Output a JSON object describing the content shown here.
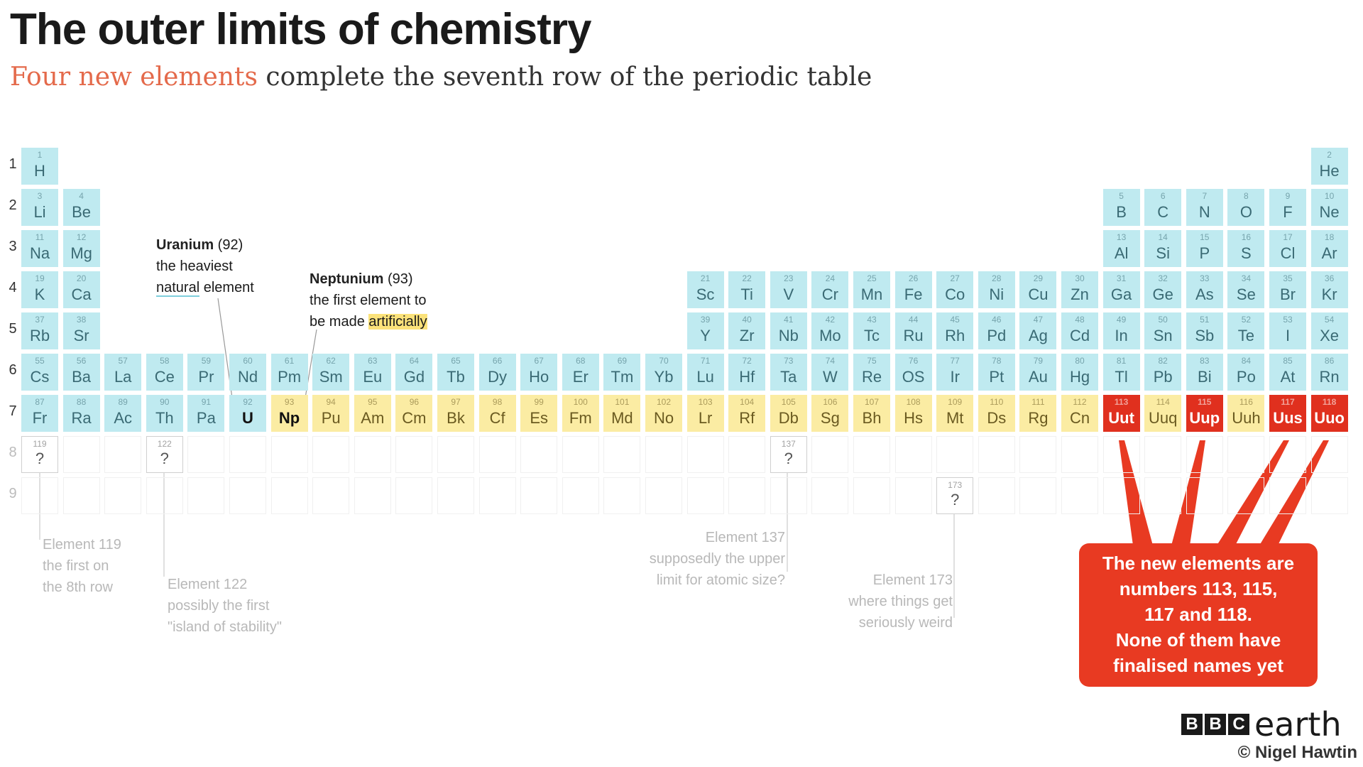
{
  "title": "The outer limits of chemistry",
  "subtitle": {
    "highlight": "Four new elements",
    "rest": " complete the seventh row of the periodic table"
  },
  "row_labels": [
    "1",
    "2",
    "3",
    "4",
    "5",
    "6",
    "7",
    "8",
    "9"
  ],
  "elements": [
    {
      "n": "1",
      "s": "H",
      "p": 1,
      "g": 1,
      "c": "blue"
    },
    {
      "n": "2",
      "s": "He",
      "p": 1,
      "g": 18,
      "c": "blue"
    },
    {
      "n": "3",
      "s": "Li",
      "p": 2,
      "g": 1,
      "c": "blue"
    },
    {
      "n": "4",
      "s": "Be",
      "p": 2,
      "g": 2,
      "c": "blue"
    },
    {
      "n": "5",
      "s": "B",
      "p": 2,
      "g": 13,
      "c": "blue"
    },
    {
      "n": "6",
      "s": "C",
      "p": 2,
      "g": 14,
      "c": "blue"
    },
    {
      "n": "7",
      "s": "N",
      "p": 2,
      "g": 15,
      "c": "blue"
    },
    {
      "n": "8",
      "s": "O",
      "p": 2,
      "g": 16,
      "c": "blue"
    },
    {
      "n": "9",
      "s": "F",
      "p": 2,
      "g": 17,
      "c": "blue"
    },
    {
      "n": "10",
      "s": "Ne",
      "p": 2,
      "g": 18,
      "c": "blue"
    },
    {
      "n": "11",
      "s": "Na",
      "p": 3,
      "g": 1,
      "c": "blue"
    },
    {
      "n": "12",
      "s": "Mg",
      "p": 3,
      "g": 2,
      "c": "blue"
    },
    {
      "n": "13",
      "s": "Al",
      "p": 3,
      "g": 13,
      "c": "blue"
    },
    {
      "n": "14",
      "s": "Si",
      "p": 3,
      "g": 14,
      "c": "blue"
    },
    {
      "n": "15",
      "s": "P",
      "p": 3,
      "g": 15,
      "c": "blue"
    },
    {
      "n": "16",
      "s": "S",
      "p": 3,
      "g": 16,
      "c": "blue"
    },
    {
      "n": "17",
      "s": "Cl",
      "p": 3,
      "g": 17,
      "c": "blue"
    },
    {
      "n": "18",
      "s": "Ar",
      "p": 3,
      "g": 18,
      "c": "blue"
    },
    {
      "n": "19",
      "s": "K",
      "p": 4,
      "g": 1,
      "c": "blue"
    },
    {
      "n": "20",
      "s": "Ca",
      "p": 4,
      "g": 2,
      "c": "blue"
    },
    {
      "n": "21",
      "s": "Sc",
      "p": 4,
      "g": 3,
      "c": "blue"
    },
    {
      "n": "22",
      "s": "Ti",
      "p": 4,
      "g": 4,
      "c": "blue"
    },
    {
      "n": "23",
      "s": "V",
      "p": 4,
      "g": 5,
      "c": "blue"
    },
    {
      "n": "24",
      "s": "Cr",
      "p": 4,
      "g": 6,
      "c": "blue"
    },
    {
      "n": "25",
      "s": "Mn",
      "p": 4,
      "g": 7,
      "c": "blue"
    },
    {
      "n": "26",
      "s": "Fe",
      "p": 4,
      "g": 8,
      "c": "blue"
    },
    {
      "n": "27",
      "s": "Co",
      "p": 4,
      "g": 9,
      "c": "blue"
    },
    {
      "n": "28",
      "s": "Ni",
      "p": 4,
      "g": 10,
      "c": "blue"
    },
    {
      "n": "29",
      "s": "Cu",
      "p": 4,
      "g": 11,
      "c": "blue"
    },
    {
      "n": "30",
      "s": "Zn",
      "p": 4,
      "g": 12,
      "c": "blue"
    },
    {
      "n": "31",
      "s": "Ga",
      "p": 4,
      "g": 13,
      "c": "blue"
    },
    {
      "n": "32",
      "s": "Ge",
      "p": 4,
      "g": 14,
      "c": "blue"
    },
    {
      "n": "33",
      "s": "As",
      "p": 4,
      "g": 15,
      "c": "blue"
    },
    {
      "n": "34",
      "s": "Se",
      "p": 4,
      "g": 16,
      "c": "blue"
    },
    {
      "n": "35",
      "s": "Br",
      "p": 4,
      "g": 17,
      "c": "blue"
    },
    {
      "n": "36",
      "s": "Kr",
      "p": 4,
      "g": 18,
      "c": "blue"
    },
    {
      "n": "37",
      "s": "Rb",
      "p": 5,
      "g": 1,
      "c": "blue"
    },
    {
      "n": "38",
      "s": "Sr",
      "p": 5,
      "g": 2,
      "c": "blue"
    },
    {
      "n": "39",
      "s": "Y",
      "p": 5,
      "g": 3,
      "c": "blue"
    },
    {
      "n": "40",
      "s": "Zr",
      "p": 5,
      "g": 4,
      "c": "blue"
    },
    {
      "n": "41",
      "s": "Nb",
      "p": 5,
      "g": 5,
      "c": "blue"
    },
    {
      "n": "42",
      "s": "Mo",
      "p": 5,
      "g": 6,
      "c": "blue"
    },
    {
      "n": "43",
      "s": "Tc",
      "p": 5,
      "g": 7,
      "c": "blue"
    },
    {
      "n": "44",
      "s": "Ru",
      "p": 5,
      "g": 8,
      "c": "blue"
    },
    {
      "n": "45",
      "s": "Rh",
      "p": 5,
      "g": 9,
      "c": "blue"
    },
    {
      "n": "46",
      "s": "Pd",
      "p": 5,
      "g": 10,
      "c": "blue"
    },
    {
      "n": "47",
      "s": "Ag",
      "p": 5,
      "g": 11,
      "c": "blue"
    },
    {
      "n": "48",
      "s": "Cd",
      "p": 5,
      "g": 12,
      "c": "blue"
    },
    {
      "n": "49",
      "s": "In",
      "p": 5,
      "g": 13,
      "c": "blue"
    },
    {
      "n": "50",
      "s": "Sn",
      "p": 5,
      "g": 14,
      "c": "blue"
    },
    {
      "n": "51",
      "s": "Sb",
      "p": 5,
      "g": 15,
      "c": "blue"
    },
    {
      "n": "52",
      "s": "Te",
      "p": 5,
      "g": 16,
      "c": "blue"
    },
    {
      "n": "53",
      "s": "I",
      "p": 5,
      "g": 17,
      "c": "blue"
    },
    {
      "n": "54",
      "s": "Xe",
      "p": 5,
      "g": 18,
      "c": "blue"
    },
    {
      "n": "55",
      "s": "Cs",
      "p": 6,
      "col": 1,
      "c": "blue"
    },
    {
      "n": "56",
      "s": "Ba",
      "p": 6,
      "col": 2,
      "c": "blue"
    },
    {
      "n": "57",
      "s": "La",
      "p": 6,
      "col": 3,
      "c": "blue"
    },
    {
      "n": "58",
      "s": "Ce",
      "p": 6,
      "col": 4,
      "c": "blue"
    },
    {
      "n": "59",
      "s": "Pr",
      "p": 6,
      "col": 5,
      "c": "blue"
    },
    {
      "n": "60",
      "s": "Nd",
      "p": 6,
      "col": 6,
      "c": "blue"
    },
    {
      "n": "61",
      "s": "Pm",
      "p": 6,
      "col": 7,
      "c": "blue"
    },
    {
      "n": "62",
      "s": "Sm",
      "p": 6,
      "col": 8,
      "c": "blue"
    },
    {
      "n": "63",
      "s": "Eu",
      "p": 6,
      "col": 9,
      "c": "blue"
    },
    {
      "n": "64",
      "s": "Gd",
      "p": 6,
      "col": 10,
      "c": "blue"
    },
    {
      "n": "65",
      "s": "Tb",
      "p": 6,
      "col": 11,
      "c": "blue"
    },
    {
      "n": "66",
      "s": "Dy",
      "p": 6,
      "col": 12,
      "c": "blue"
    },
    {
      "n": "67",
      "s": "Ho",
      "p": 6,
      "col": 13,
      "c": "blue"
    },
    {
      "n": "68",
      "s": "Er",
      "p": 6,
      "col": 14,
      "c": "blue"
    },
    {
      "n": "69",
      "s": "Tm",
      "p": 6,
      "col": 15,
      "c": "blue"
    },
    {
      "n": "70",
      "s": "Yb",
      "p": 6,
      "col": 16,
      "c": "blue"
    },
    {
      "n": "71",
      "s": "Lu",
      "p": 6,
      "col": 17,
      "c": "blue"
    },
    {
      "n": "72",
      "s": "Hf",
      "p": 6,
      "col": 18,
      "c": "blue"
    },
    {
      "n": "73",
      "s": "Ta",
      "p": 6,
      "col": 19,
      "c": "blue"
    },
    {
      "n": "74",
      "s": "W",
      "p": 6,
      "col": 20,
      "c": "blue"
    },
    {
      "n": "75",
      "s": "Re",
      "p": 6,
      "col": 21,
      "c": "blue"
    },
    {
      "n": "76",
      "s": "OS",
      "p": 6,
      "col": 22,
      "c": "blue"
    },
    {
      "n": "77",
      "s": "Ir",
      "p": 6,
      "col": 23,
      "c": "blue"
    },
    {
      "n": "78",
      "s": "Pt",
      "p": 6,
      "col": 24,
      "c": "blue"
    },
    {
      "n": "79",
      "s": "Au",
      "p": 6,
      "col": 25,
      "c": "blue"
    },
    {
      "n": "80",
      "s": "Hg",
      "p": 6,
      "col": 26,
      "c": "blue"
    },
    {
      "n": "81",
      "s": "Tl",
      "p": 6,
      "col": 27,
      "c": "blue"
    },
    {
      "n": "82",
      "s": "Pb",
      "p": 6,
      "col": 28,
      "c": "blue"
    },
    {
      "n": "83",
      "s": "Bi",
      "p": 6,
      "col": 29,
      "c": "blue"
    },
    {
      "n": "84",
      "s": "Po",
      "p": 6,
      "col": 30,
      "c": "blue"
    },
    {
      "n": "85",
      "s": "At",
      "p": 6,
      "col": 31,
      "c": "blue"
    },
    {
      "n": "86",
      "s": "Rn",
      "p": 6,
      "col": 32,
      "c": "blue"
    },
    {
      "n": "87",
      "s": "Fr",
      "p": 7,
      "col": 1,
      "c": "blue"
    },
    {
      "n": "88",
      "s": "Ra",
      "p": 7,
      "col": 2,
      "c": "blue"
    },
    {
      "n": "89",
      "s": "Ac",
      "p": 7,
      "col": 3,
      "c": "blue"
    },
    {
      "n": "90",
      "s": "Th",
      "p": 7,
      "col": 4,
      "c": "blue"
    },
    {
      "n": "91",
      "s": "Pa",
      "p": 7,
      "col": 5,
      "c": "blue"
    },
    {
      "n": "92",
      "s": "U",
      "p": 7,
      "col": 6,
      "c": "blue",
      "strong": true
    },
    {
      "n": "93",
      "s": "Np",
      "p": 7,
      "col": 7,
      "c": "yellow",
      "strong": true
    },
    {
      "n": "94",
      "s": "Pu",
      "p": 7,
      "col": 8,
      "c": "yellow"
    },
    {
      "n": "95",
      "s": "Am",
      "p": 7,
      "col": 9,
      "c": "yellow"
    },
    {
      "n": "96",
      "s": "Cm",
      "p": 7,
      "col": 10,
      "c": "yellow"
    },
    {
      "n": "97",
      "s": "Bk",
      "p": 7,
      "col": 11,
      "c": "yellow"
    },
    {
      "n": "98",
      "s": "Cf",
      "p": 7,
      "col": 12,
      "c": "yellow"
    },
    {
      "n": "99",
      "s": "Es",
      "p": 7,
      "col": 13,
      "c": "yellow"
    },
    {
      "n": "100",
      "s": "Fm",
      "p": 7,
      "col": 14,
      "c": "yellow"
    },
    {
      "n": "101",
      "s": "Md",
      "p": 7,
      "col": 15,
      "c": "yellow"
    },
    {
      "n": "102",
      "s": "No",
      "p": 7,
      "col": 16,
      "c": "yellow"
    },
    {
      "n": "103",
      "s": "Lr",
      "p": 7,
      "col": 17,
      "c": "yellow"
    },
    {
      "n": "104",
      "s": "Rf",
      "p": 7,
      "col": 18,
      "c": "yellow"
    },
    {
      "n": "105",
      "s": "Db",
      "p": 7,
      "col": 19,
      "c": "yellow"
    },
    {
      "n": "106",
      "s": "Sg",
      "p": 7,
      "col": 20,
      "c": "yellow"
    },
    {
      "n": "107",
      "s": "Bh",
      "p": 7,
      "col": 21,
      "c": "yellow"
    },
    {
      "n": "108",
      "s": "Hs",
      "p": 7,
      "col": 22,
      "c": "yellow"
    },
    {
      "n": "109",
      "s": "Mt",
      "p": 7,
      "col": 23,
      "c": "yellow"
    },
    {
      "n": "110",
      "s": "Ds",
      "p": 7,
      "col": 24,
      "c": "yellow"
    },
    {
      "n": "111",
      "s": "Rg",
      "p": 7,
      "col": 25,
      "c": "yellow"
    },
    {
      "n": "112",
      "s": "Cn",
      "p": 7,
      "col": 26,
      "c": "yellow"
    },
    {
      "n": "113",
      "s": "Uut",
      "p": 7,
      "col": 27,
      "c": "red"
    },
    {
      "n": "114",
      "s": "Uuq",
      "p": 7,
      "col": 28,
      "c": "yellow"
    },
    {
      "n": "115",
      "s": "Uup",
      "p": 7,
      "col": 29,
      "c": "red"
    },
    {
      "n": "116",
      "s": "Uuh",
      "p": 7,
      "col": 30,
      "c": "yellow"
    },
    {
      "n": "117",
      "s": "Uus",
      "p": 7,
      "col": 31,
      "c": "red"
    },
    {
      "n": "118",
      "s": "Uuo",
      "p": 7,
      "col": 32,
      "c": "red"
    },
    {
      "n": "119",
      "s": "?",
      "p": 8,
      "col": 1,
      "c": "q"
    },
    {
      "n": "122",
      "s": "?",
      "p": 8,
      "col": 4,
      "c": "q"
    },
    {
      "n": "137",
      "s": "?",
      "p": 8,
      "col": 19,
      "c": "q"
    },
    {
      "n": "173",
      "s": "?",
      "p": 9,
      "col": 23,
      "c": "q"
    }
  ],
  "annotations": {
    "uranium": {
      "name": "Uranium",
      "num": " (92)",
      "line1": "the heaviest",
      "line2_hl": "natural",
      "line2_rest": " element"
    },
    "neptunium": {
      "name": "Neptunium",
      "num": " (93)",
      "line1": "the first element to",
      "line2_pre": "be made ",
      "line2_hl": "artificially"
    },
    "e119": [
      "Element 119",
      "the first on",
      "the 8th row"
    ],
    "e122": [
      "Element 122",
      "possibly the first",
      "\"island of stability\""
    ],
    "e137": [
      "Element 137",
      "supposedly the upper",
      "limit for atomic size?"
    ],
    "e173": [
      "Element 173",
      "where things get",
      "seriously weird"
    ]
  },
  "callout": [
    "The new elements are",
    "numbers 113, 115,",
    "117 and 118.",
    "None of them have",
    "finalised names yet"
  ],
  "logo": {
    "b1": "B",
    "b2": "B",
    "b3": "C",
    "earth": "earth"
  },
  "credit": "© Nigel Hawtin",
  "colors": {
    "blue": "#bfeaf0",
    "yellow": "#fbeca3",
    "red": "#e0301e",
    "accent": "#e46a4b"
  }
}
